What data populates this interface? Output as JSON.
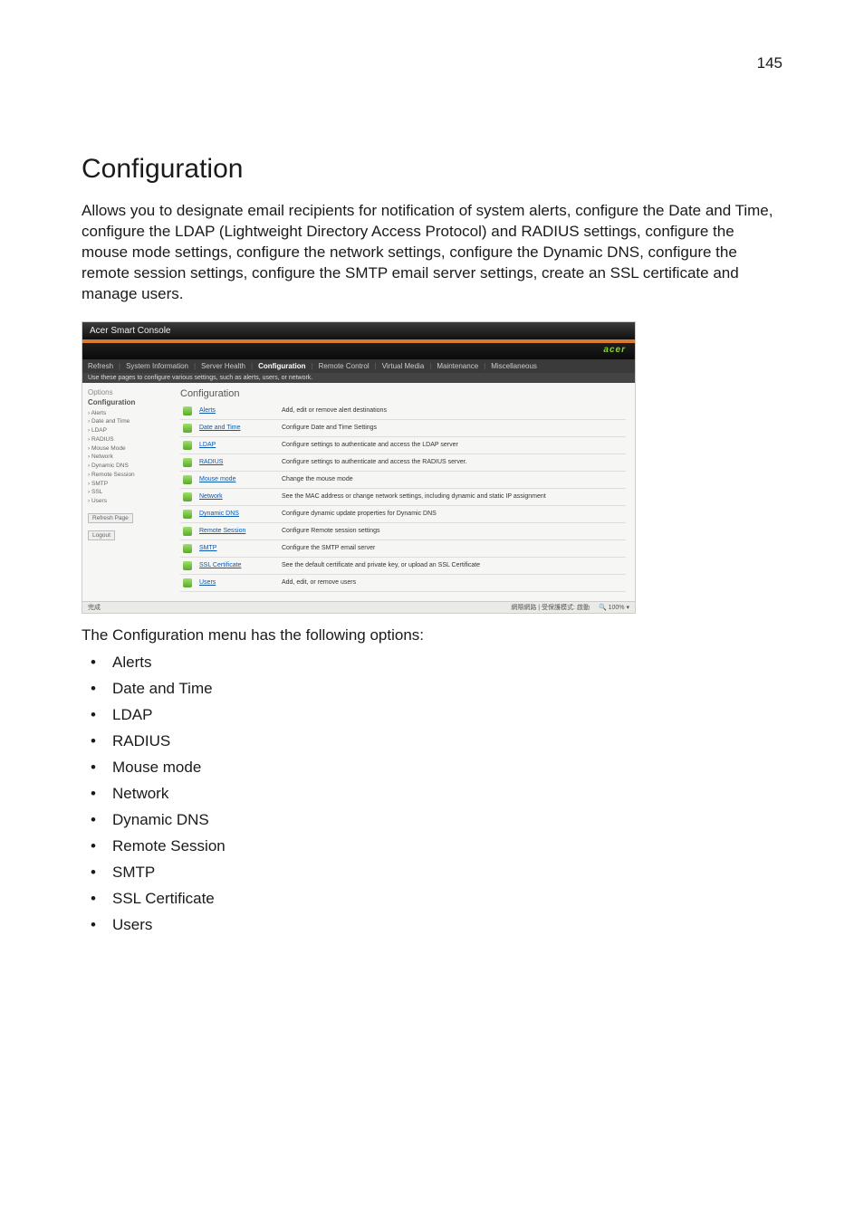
{
  "page_number": "145",
  "title": "Configuration",
  "intro": "Allows you to designate email recipients for notification of system alerts, configure the Date and Time, configure the LDAP (Lightweight Directory Access Protocol) and RADIUS settings, configure the mouse mode settings, configure the network settings, configure the Dynamic DNS, configure the remote session settings, configure the SMTP email server settings, create an SSL certificate and manage users.",
  "screenshot": {
    "window_title": "Acer Smart Console",
    "brand": "acer",
    "tabs": {
      "refresh": "Refresh",
      "sysinfo": "System Information",
      "health": "Server Health",
      "config": "Configuration",
      "remote": "Remote Control",
      "vmedia": "Virtual Media",
      "maint": "Maintenance",
      "misc": "Miscellaneous"
    },
    "subbar": "Use these pages to configure various settings, such as alerts, users, or network.",
    "sidebar": {
      "options": "Options",
      "configuration": "Configuration",
      "items": [
        "Alerts",
        "Date and Time",
        "LDAP",
        "RADIUS",
        "Mouse Mode",
        "Network",
        "Dynamic DNS",
        "Remote Session",
        "SMTP",
        "SSL",
        "Users"
      ],
      "refresh_btn": "Refresh Page",
      "logout_btn": "Logout"
    },
    "main_heading": "Configuration",
    "rows": [
      {
        "label": "Alerts",
        "desc": "Add, edit or remove alert destinations"
      },
      {
        "label": "Date and Time",
        "desc": "Configure Date and Time Settings"
      },
      {
        "label": "LDAP",
        "desc": "Configure settings to authenticate and access the LDAP server"
      },
      {
        "label": "RADIUS",
        "desc": "Configure settings to authenticate and access the RADIUS server."
      },
      {
        "label": "Mouse mode",
        "desc": "Change the mouse mode"
      },
      {
        "label": "Network",
        "desc": "See the MAC address or change network settings, including dynamic and static IP assignment"
      },
      {
        "label": "Dynamic DNS",
        "desc": "Configure dynamic update properties for Dynamic DNS"
      },
      {
        "label": "Remote Session",
        "desc": "Configure Remote session settings"
      },
      {
        "label": "SMTP",
        "desc": "Configure the SMTP email server"
      },
      {
        "label": "SSL Certificate",
        "desc": "See the default certificate and private key, or upload an SSL Certificate"
      },
      {
        "label": "Users",
        "desc": "Add, edit, or remove users"
      }
    ],
    "status_left": "完成",
    "status_right1": "網際網路 | 受保護模式: 啟動",
    "status_right2": "100%"
  },
  "lead2": "The Configuration menu has the following options:",
  "bullets": [
    "Alerts",
    "Date and Time",
    "LDAP",
    "RADIUS",
    "Mouse mode",
    "Network",
    "Dynamic DNS",
    "Remote Session",
    "SMTP",
    "SSL Certificate",
    "Users"
  ]
}
